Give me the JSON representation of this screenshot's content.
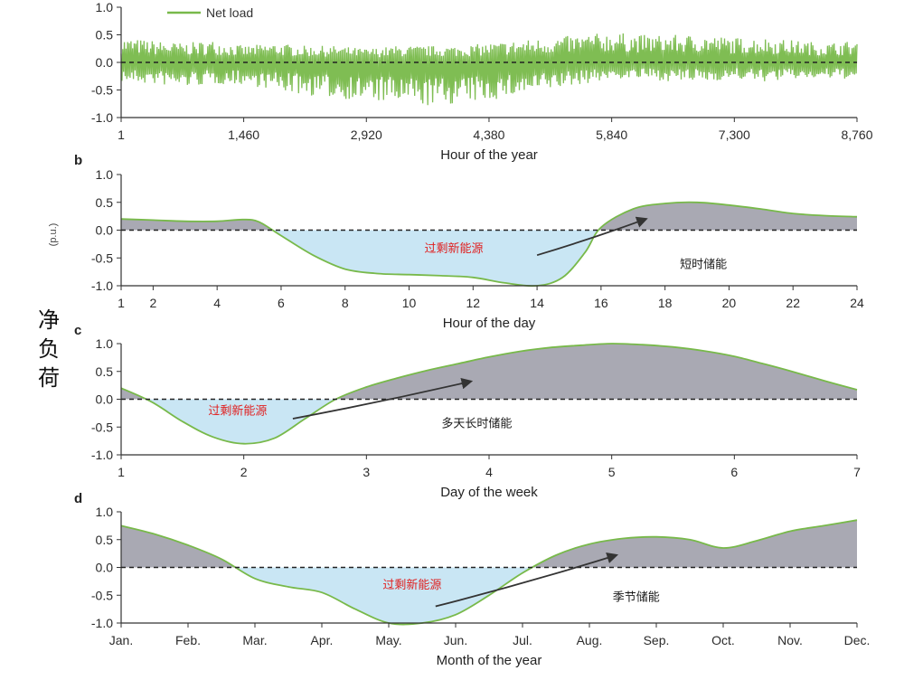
{
  "side_label": [
    "净",
    "负",
    "荷"
  ],
  "unit_label": "(p.u.)",
  "colors": {
    "line": "#78b94a",
    "surplus_fill": "#c9e6f4",
    "deficit_fill": "#a9a9b3",
    "axis": "#333333",
    "annot_red": "#e02020"
  },
  "chart_data": [
    {
      "type": "line",
      "panel_letter": "",
      "legend": [
        "Net load"
      ],
      "xlabel": "Hour of the year",
      "ylabel": "",
      "x_ticks": [
        "1",
        "1,460",
        "2,920",
        "4,380",
        "5,840",
        "7,300",
        "8,760"
      ],
      "xlim": [
        1,
        8760
      ],
      "y_ticks": [
        "-1.0",
        "-0.5",
        "0.0",
        "0.5",
        "1.0"
      ],
      "ylim": [
        -1,
        1
      ],
      "baseline": 0,
      "series": [
        {
          "name": "Net load",
          "x": [
            1,
            365,
            730,
            1095,
            1460,
            1825,
            2190,
            2555,
            2920,
            3285,
            3650,
            4015,
            4380,
            4745,
            5110,
            5475,
            5840,
            6205,
            6570,
            6935,
            7300,
            7665,
            8030,
            8395,
            8760
          ],
          "y_upper": [
            0.45,
            0.4,
            0.35,
            0.4,
            0.3,
            0.35,
            0.3,
            0.3,
            0.25,
            0.3,
            0.3,
            0.3,
            0.35,
            0.4,
            0.45,
            0.5,
            0.55,
            0.5,
            0.5,
            0.5,
            0.45,
            0.45,
            0.4,
            0.35,
            0.4
          ],
          "y_lower": [
            -0.35,
            -0.4,
            -0.45,
            -0.4,
            -0.4,
            -0.5,
            -0.6,
            -0.65,
            -0.7,
            -0.75,
            -0.8,
            -0.75,
            -0.7,
            -0.6,
            -0.5,
            -0.4,
            -0.3,
            -0.3,
            -0.35,
            -0.35,
            -0.3,
            -0.35,
            -0.3,
            -0.3,
            -0.3
          ]
        }
      ]
    },
    {
      "type": "area",
      "panel_letter": "b",
      "xlabel": "Hour of the day",
      "ylabel": "(p.u.)",
      "x_ticks": [
        "1",
        "2",
        "4",
        "6",
        "8",
        "10",
        "12",
        "14",
        "16",
        "18",
        "20",
        "22",
        "24"
      ],
      "x_tick_values": [
        1,
        2,
        4,
        6,
        8,
        10,
        12,
        14,
        16,
        18,
        20,
        22,
        24
      ],
      "xlim": [
        1,
        24
      ],
      "y_ticks": [
        "-1.0",
        "-0.5",
        "0.0",
        "0.5",
        "1.0"
      ],
      "ylim": [
        -1,
        1
      ],
      "baseline": 0,
      "series": [
        {
          "name": "",
          "x": [
            1,
            2,
            3,
            4,
            4.8,
            5.3,
            6,
            7,
            8,
            9,
            10,
            11,
            12,
            13,
            14,
            14.8,
            15.5,
            16,
            17,
            18,
            19,
            20,
            21,
            22,
            23,
            24
          ],
          "y": [
            0.2,
            0.18,
            0.16,
            0.16,
            0.19,
            0.15,
            -0.1,
            -0.45,
            -0.7,
            -0.78,
            -0.8,
            -0.82,
            -0.85,
            -0.95,
            -1.0,
            -0.85,
            -0.4,
            0.05,
            0.38,
            0.48,
            0.5,
            0.45,
            0.38,
            0.3,
            0.26,
            0.24
          ]
        }
      ],
      "annotations": [
        {
          "text": "过剩新能源",
          "style": "red",
          "x": 11.4,
          "y": -0.4
        },
        {
          "text": "短时储能",
          "style": "dark",
          "x": 19.2,
          "y": -0.68
        }
      ],
      "arrow": {
        "from": [
          14,
          -0.45
        ],
        "to": [
          17.4,
          0.2
        ]
      }
    },
    {
      "type": "area",
      "panel_letter": "c",
      "xlabel": "Day of the week",
      "ylabel": "",
      "x_ticks": [
        "1",
        "2",
        "3",
        "4",
        "5",
        "6",
        "7"
      ],
      "x_tick_values": [
        1,
        2,
        3,
        4,
        5,
        6,
        7
      ],
      "xlim": [
        1,
        7
      ],
      "y_ticks": [
        "-1.0",
        "-0.5",
        "0.0",
        "0.5",
        "1.0"
      ],
      "ylim": [
        -1,
        1
      ],
      "baseline": 0,
      "series": [
        {
          "name": "",
          "x": [
            1,
            1.25,
            1.5,
            1.75,
            2,
            2.25,
            2.5,
            2.75,
            3,
            3.25,
            3.5,
            3.75,
            4,
            4.25,
            4.5,
            4.75,
            5,
            5.25,
            5.5,
            5.75,
            6,
            6.25,
            6.5,
            6.75,
            7
          ],
          "y": [
            0.2,
            -0.05,
            -0.4,
            -0.68,
            -0.8,
            -0.7,
            -0.35,
            0.0,
            0.22,
            0.38,
            0.52,
            0.64,
            0.76,
            0.86,
            0.93,
            0.97,
            1.0,
            0.98,
            0.94,
            0.87,
            0.77,
            0.63,
            0.48,
            0.32,
            0.17
          ]
        }
      ],
      "annotations": [
        {
          "text": "过剩新能源",
          "style": "red",
          "x": 1.95,
          "y": -0.28
        },
        {
          "text": "多天长时储能",
          "style": "dark",
          "x": 3.9,
          "y": -0.5
        }
      ],
      "arrow": {
        "from": [
          2.4,
          -0.35
        ],
        "to": [
          3.85,
          0.32
        ]
      }
    },
    {
      "type": "area",
      "panel_letter": "d",
      "xlabel": "Month of the year",
      "ylabel": "",
      "x_ticks": [
        "Jan.",
        "Feb.",
        "Mar.",
        "Apr.",
        "May.",
        "Jun.",
        "Jul.",
        "Aug.",
        "Sep.",
        "Oct.",
        "Nov.",
        "Dec."
      ],
      "x_tick_values": [
        0,
        1,
        2,
        3,
        4,
        5,
        6,
        7,
        8,
        9,
        10,
        11
      ],
      "xlim": [
        0,
        11
      ],
      "y_ticks": [
        "-1.0",
        "-0.5",
        "0.0",
        "0.5",
        "1.0"
      ],
      "ylim": [
        -1,
        1
      ],
      "baseline": 0,
      "series": [
        {
          "name": "",
          "x": [
            0,
            0.5,
            1,
            1.5,
            2,
            2.5,
            3,
            3.5,
            4,
            4.5,
            5,
            5.5,
            6,
            6.5,
            7,
            7.5,
            8,
            8.5,
            9,
            9.5,
            10,
            10.5,
            11
          ],
          "y": [
            0.75,
            0.6,
            0.4,
            0.15,
            -0.2,
            -0.35,
            -0.45,
            -0.75,
            -1.0,
            -1.0,
            -0.85,
            -0.5,
            -0.1,
            0.22,
            0.42,
            0.52,
            0.55,
            0.5,
            0.35,
            0.48,
            0.65,
            0.75,
            0.85
          ]
        }
      ],
      "annotations": [
        {
          "text": "过剩新能源",
          "style": "red",
          "x": 4.35,
          "y": -0.38
        },
        {
          "text": "季节储能",
          "style": "dark",
          "x": 7.7,
          "y": -0.6
        }
      ],
      "arrow": {
        "from": [
          4.7,
          -0.7
        ],
        "to": [
          7.4,
          0.22
        ]
      }
    }
  ]
}
